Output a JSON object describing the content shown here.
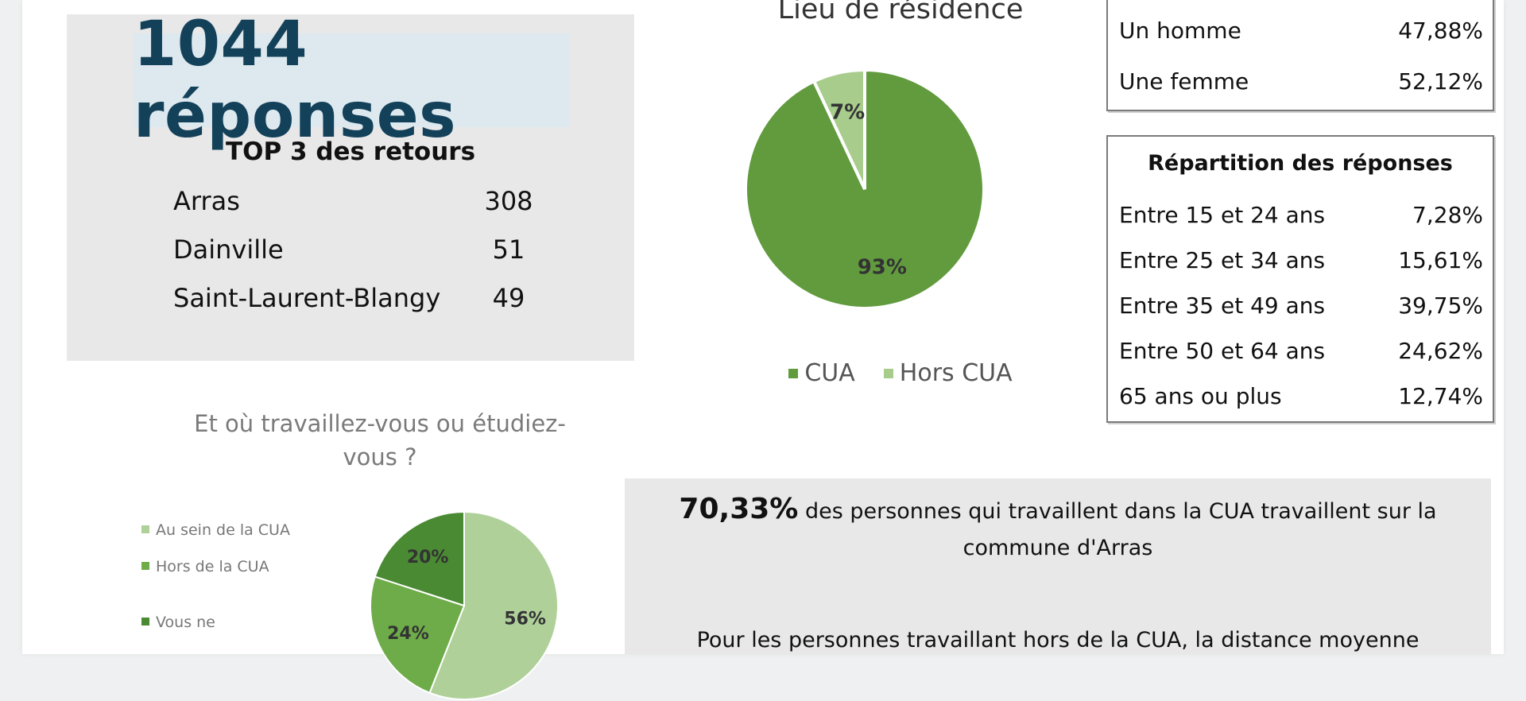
{
  "summary": {
    "total": "1044 réponses",
    "top3_title": "TOP 3 des retours",
    "top3": [
      {
        "name": "Arras",
        "count": "308"
      },
      {
        "name": "Dainville",
        "count": "51"
      },
      {
        "name": "Saint-Laurent-Blangy",
        "count": "49"
      }
    ]
  },
  "residence": {
    "title": "Lieu de résidence",
    "legend": [
      "CUA",
      "Hors CUA"
    ]
  },
  "gender": {
    "rows": [
      {
        "label": "Un homme",
        "value": "47,88%"
      },
      {
        "label": "Une femme",
        "value": "52,12%"
      }
    ]
  },
  "age": {
    "title": "Répartition des réponses",
    "rows": [
      {
        "label": "Entre 15 et 24 ans",
        "value": "7,28%"
      },
      {
        "label": "Entre 25 et 34 ans",
        "value": "15,61%"
      },
      {
        "label": "Entre 35 et 49 ans",
        "value": "39,75%"
      },
      {
        "label": "Entre 50 et 64 ans",
        "value": "24,62%"
      },
      {
        "label": "65 ans ou plus",
        "value": "12,74%"
      }
    ]
  },
  "work": {
    "title": "Et où travaillez-vous ou étudiez-vous ?",
    "legend": [
      "Au sein de la CUA",
      "Hors de la CUA",
      "Vous ne"
    ]
  },
  "note": {
    "pct": "70,33%",
    "text": " des personnes qui travaillent dans la CUA travaillent sur la commune d'Arras",
    "line2": "Pour les personnes travaillant hors de la CUA, la distance moyenne"
  },
  "colors": {
    "cua": "#619b3e",
    "hors_cua": "#a7cc8c",
    "work_in": "#b0d09a",
    "work_out": "#6dac48",
    "work_none": "#4a8a33"
  },
  "chart_data": [
    {
      "type": "pie",
      "title": "Lieu de résidence",
      "categories": [
        "CUA",
        "Hors CUA"
      ],
      "values": [
        93,
        7
      ],
      "labels": [
        "93%",
        "7%"
      ],
      "legend": "bottom"
    },
    {
      "type": "pie",
      "title": "Et où travaillez-vous ou étudiez-vous ?",
      "categories": [
        "Au sein de la CUA",
        "Hors de la CUA",
        "Vous ne"
      ],
      "values": [
        56,
        24,
        20
      ],
      "labels": [
        "56%",
        "24%",
        "20%"
      ],
      "legend": "left"
    }
  ]
}
